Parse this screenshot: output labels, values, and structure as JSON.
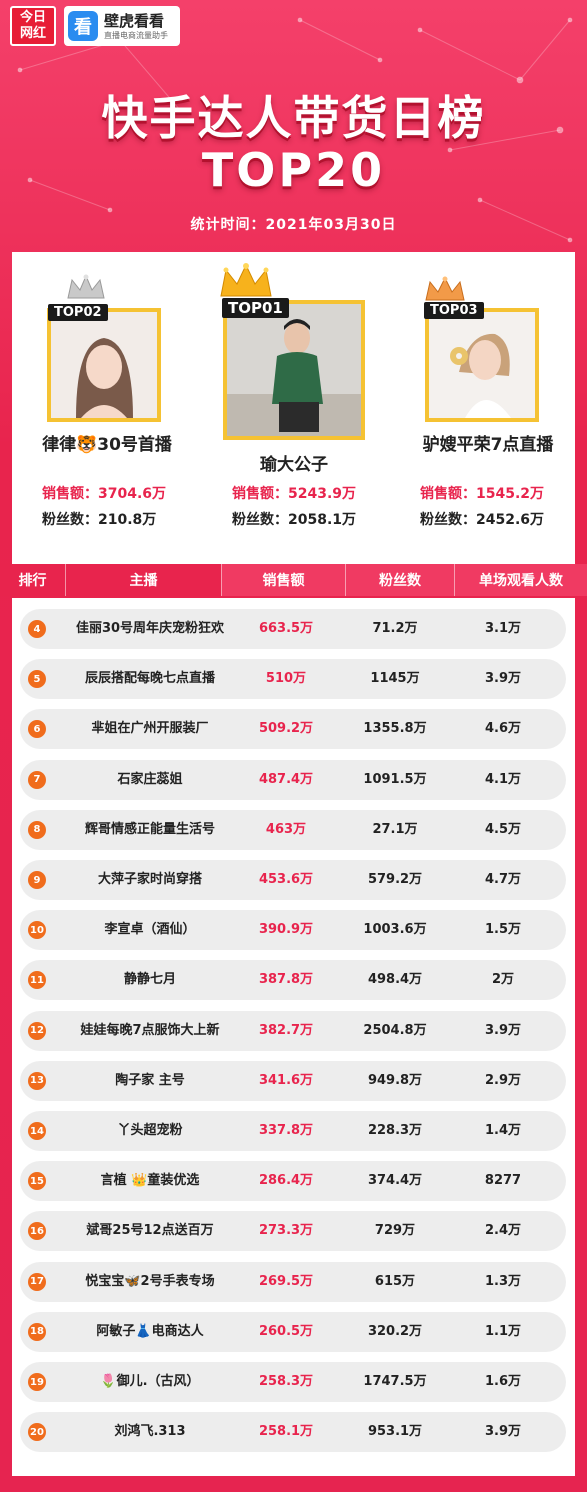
{
  "brand": {
    "jr_line1": "今日",
    "jr_line2": "网红",
    "bh_icon": "看",
    "bh_name": "壁虎看看",
    "bh_sub": "直播电商流量助手"
  },
  "header": {
    "title": "快手达人带货日榜",
    "subtitle": "TOP20",
    "date": "统计时间：2021年03月30日"
  },
  "top3": [
    {
      "tag": "TOP01",
      "name": "瑜大公子",
      "sales": "销售额：5243.9万",
      "fans": "粉丝数：2058.1万",
      "crown": "gold-crown"
    },
    {
      "tag": "TOP02",
      "name": "律律🐯30号首播",
      "sales": "销售额：3704.6万",
      "fans": "粉丝数：210.8万",
      "crown": "silver-crown"
    },
    {
      "tag": "TOP03",
      "name": "驴嫂平荣7点直播",
      "sales": "销售额：1545.2万",
      "fans": "粉丝数：2452.6万",
      "crown": "bronze-crown"
    }
  ],
  "table": {
    "headers": [
      "排行",
      "主播",
      "销售额",
      "粉丝数",
      "单场观看人数"
    ],
    "rows": [
      {
        "rank": "4",
        "name": "佳丽30号周年庆宠粉狂欢",
        "sales": "663.5万",
        "fans": "71.2万",
        "views": "3.1万"
      },
      {
        "rank": "5",
        "name": "辰辰搭配每晚七点直播",
        "sales": "510万",
        "fans": "1145万",
        "views": "3.9万"
      },
      {
        "rank": "6",
        "name": "芈姐在广州开服装厂",
        "sales": "509.2万",
        "fans": "1355.8万",
        "views": "4.6万"
      },
      {
        "rank": "7",
        "name": "石家庄蕊姐",
        "sales": "487.4万",
        "fans": "1091.5万",
        "views": "4.1万"
      },
      {
        "rank": "8",
        "name": "辉哥情感正能量生活号",
        "sales": "463万",
        "fans": "27.1万",
        "views": "4.5万"
      },
      {
        "rank": "9",
        "name": "大萍子家时尚穿搭",
        "sales": "453.6万",
        "fans": "579.2万",
        "views": "4.7万"
      },
      {
        "rank": "10",
        "name": "李宣卓（酒仙）",
        "sales": "390.9万",
        "fans": "1003.6万",
        "views": "1.5万"
      },
      {
        "rank": "11",
        "name": "静静七月",
        "sales": "387.8万",
        "fans": "498.4万",
        "views": "2万"
      },
      {
        "rank": "12",
        "name": "娃娃每晚7点服饰大上新",
        "sales": "382.7万",
        "fans": "2504.8万",
        "views": "3.9万"
      },
      {
        "rank": "13",
        "name": "陶子家 主号",
        "sales": "341.6万",
        "fans": "949.8万",
        "views": "2.9万"
      },
      {
        "rank": "14",
        "name": "丫头超宠粉",
        "sales": "337.8万",
        "fans": "228.3万",
        "views": "1.4万"
      },
      {
        "rank": "15",
        "name": "言植 👑童装优选",
        "sales": "286.4万",
        "fans": "374.4万",
        "views": "8277"
      },
      {
        "rank": "16",
        "name": "斌哥25号12点送百万",
        "sales": "273.3万",
        "fans": "729万",
        "views": "2.4万"
      },
      {
        "rank": "17",
        "name": "悦宝宝🦋2号手表专场",
        "sales": "269.5万",
        "fans": "615万",
        "views": "1.3万"
      },
      {
        "rank": "18",
        "name": "阿敏子👗电商达人",
        "sales": "260.5万",
        "fans": "320.2万",
        "views": "1.1万"
      },
      {
        "rank": "19",
        "name": "🌷御儿.（古风）",
        "sales": "258.3万",
        "fans": "1747.5万",
        "views": "1.6万"
      },
      {
        "rank": "20",
        "name": "刘鸿飞.313",
        "sales": "258.1万",
        "fans": "953.1万",
        "views": "3.9万"
      }
    ]
  },
  "colors": {
    "accent": "#e8244d",
    "gold": "#f5c233",
    "rank_badge": "#f06c1c"
  }
}
